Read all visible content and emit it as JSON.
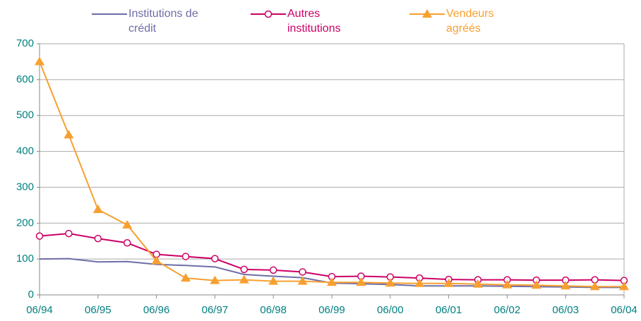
{
  "chart_data": {
    "type": "line",
    "categories": [
      "06/94",
      null,
      "06/95",
      null,
      "06/96",
      null,
      "06/97",
      null,
      "06/98",
      null,
      "06/99",
      null,
      "06/00",
      null,
      "06/01",
      null,
      "06/02",
      null,
      "06/03",
      null,
      "06/04"
    ],
    "series": [
      {
        "name": "Institutions de crédit",
        "color": "#6e6ea8",
        "marker": "none",
        "values": [
          100,
          101,
          92,
          93,
          85,
          82,
          78,
          57,
          52,
          48,
          33,
          31,
          29,
          25,
          25,
          25,
          24,
          23,
          22,
          21,
          21
        ]
      },
      {
        "name": "Autres institutions",
        "color": "#cc0066",
        "marker": "circle",
        "values": [
          164,
          171,
          157,
          145,
          113,
          107,
          101,
          71,
          69,
          64,
          51,
          52,
          50,
          47,
          43,
          42,
          42,
          41,
          41,
          42,
          40
        ]
      },
      {
        "name": "Vendeurs agréés",
        "color": "#f7a030",
        "marker": "triangle",
        "values": [
          650,
          446,
          238,
          195,
          95,
          47,
          40,
          42,
          38,
          38,
          35,
          35,
          33,
          32,
          32,
          30,
          28,
          27,
          25,
          23,
          23
        ]
      }
    ],
    "ylim": [
      0,
      700
    ],
    "yticks": [
      0,
      100,
      200,
      300,
      400,
      500,
      600,
      700
    ],
    "grid": true
  }
}
